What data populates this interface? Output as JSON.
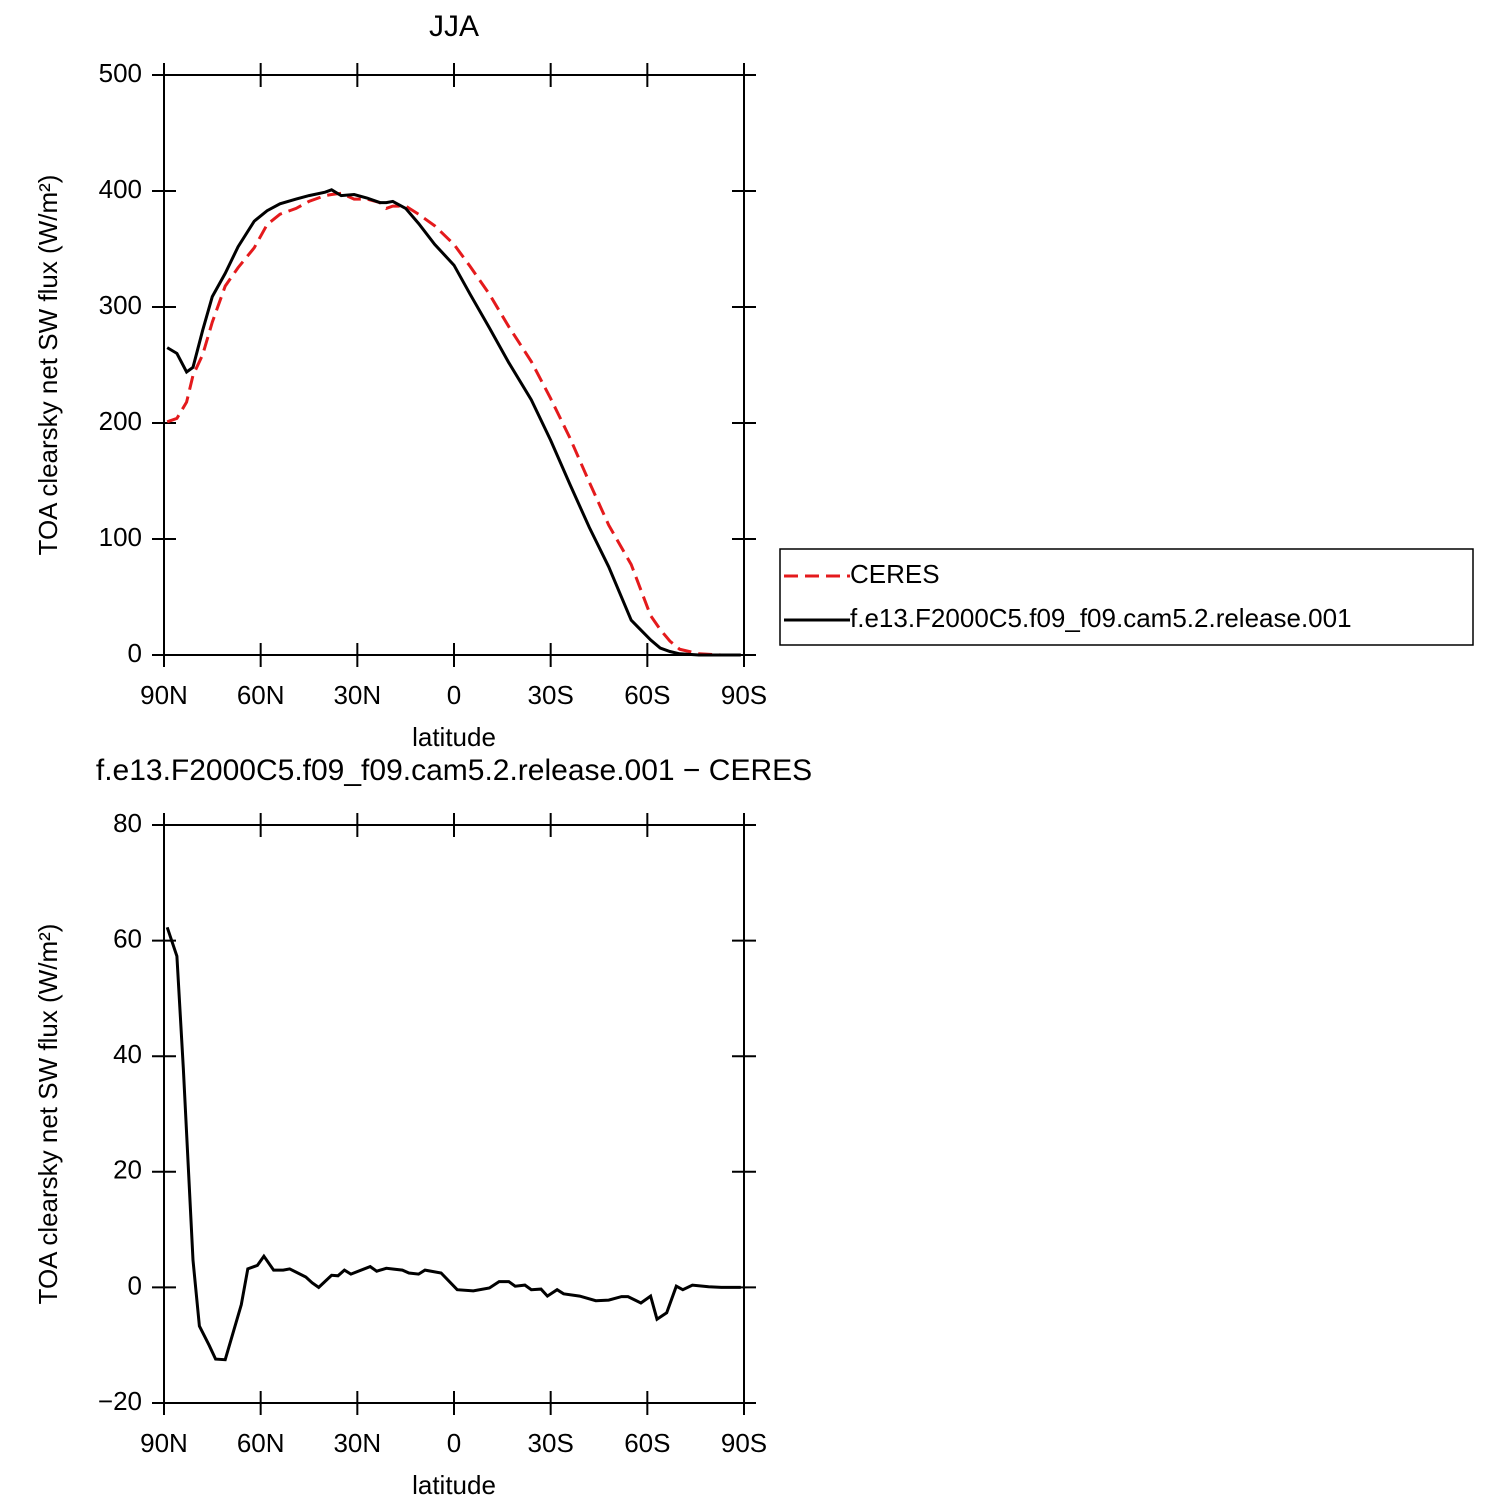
{
  "chart_data": [
    {
      "type": "line",
      "title": "JJA",
      "xlabel": "latitude",
      "ylabel": "TOA clearsky net SW flux (W/m²)",
      "x": [
        89,
        86,
        83,
        81,
        78,
        75,
        71,
        67,
        62,
        58,
        54,
        49,
        45,
        40,
        38,
        35,
        31,
        27,
        23,
        21,
        19,
        15,
        11,
        6,
        0,
        -5,
        -11,
        -17,
        -24,
        -30,
        -36,
        -42,
        -48,
        -55,
        -61,
        -64,
        -67,
        -70,
        -76,
        -83,
        -89
      ],
      "series": [
        {
          "name": "CERES",
          "color": "#e41a1c",
          "linestyle": "dashed",
          "values": [
            201,
            204,
            218,
            241,
            259,
            287,
            318,
            334,
            351,
            371,
            380,
            385,
            391,
            396,
            397,
            398,
            393,
            393,
            390,
            385,
            387,
            387,
            380,
            370,
            354,
            335,
            311,
            283,
            253,
            221,
            187,
            149,
            112,
            78,
            34,
            22,
            12,
            5,
            1,
            0,
            0
          ]
        },
        {
          "name": "f.e13.F2000C5.f09_f09.cam5.2.release.001",
          "color": "#000000",
          "linestyle": "solid",
          "values": [
            265,
            260,
            244,
            248,
            280,
            309,
            329,
            352,
            374,
            383,
            389,
            393,
            396,
            399,
            401,
            396,
            397,
            394,
            390,
            390,
            391,
            385,
            372,
            354,
            336,
            311,
            282,
            252,
            220,
            185,
            147,
            110,
            76,
            30,
            13,
            6,
            3,
            1,
            0,
            0,
            0
          ]
        }
      ],
      "xlim": [
        90,
        -90
      ],
      "ylim": [
        0,
        500
      ],
      "xticks": [
        {
          "value": 90,
          "label": "90N"
        },
        {
          "value": 60,
          "label": "60N"
        },
        {
          "value": 30,
          "label": "30N"
        },
        0,
        {
          "value": -30,
          "label": "30S"
        },
        {
          "value": -60,
          "label": "60S"
        },
        {
          "value": -90,
          "label": "90S"
        }
      ],
      "yticks": [
        0,
        100,
        200,
        300,
        400,
        500
      ],
      "legend": "right"
    },
    {
      "type": "line",
      "title": "f.e13.F2000C5.f09_f09.cam5.2.release.001  −  CERES",
      "xlabel": "latitude",
      "ylabel": "TOA clearsky net SW flux (W/m²)",
      "x": [
        89,
        86,
        84,
        81,
        79,
        76,
        74,
        71,
        66,
        64,
        61,
        59,
        56,
        53,
        51,
        46,
        44,
        42,
        38,
        36,
        34,
        32,
        26,
        24,
        21,
        16,
        14,
        11,
        9,
        4,
        -1,
        -6,
        -11,
        -14,
        -17,
        -19,
        -22,
        -24,
        -27,
        -29,
        -32,
        -34,
        -39,
        -44,
        -48,
        -52,
        -54,
        -58,
        -61,
        -63,
        -66,
        -69,
        -71,
        -74,
        -79,
        -83,
        -89
      ],
      "series": [
        {
          "color": "#000000",
          "linestyle": "solid",
          "values": [
            62.3,
            57.3,
            38,
            4.7,
            -6.7,
            -10,
            -12.4,
            -12.5,
            -3,
            3.2,
            3.8,
            5.4,
            3,
            3,
            3.2,
            1.8,
            0.8,
            0,
            2.1,
            2,
            3,
            2.3,
            3.6,
            2.8,
            3.3,
            3,
            2.5,
            2.3,
            3,
            2.5,
            -0.4,
            -0.6,
            -0.1,
            1,
            1,
            0.2,
            0.4,
            -0.4,
            -0.3,
            -1.5,
            -0.4,
            -1.1,
            -1.5,
            -2.3,
            -2.2,
            -1.6,
            -1.6,
            -2.7,
            -1.5,
            -5.5,
            -4.4,
            0.2,
            -0.4,
            0.4,
            0.1,
            0,
            0
          ]
        }
      ],
      "xlim": [
        90,
        -90
      ],
      "ylim": [
        -20,
        80
      ],
      "xticks": [
        {
          "value": 90,
          "label": "90N"
        },
        {
          "value": 60,
          "label": "60N"
        },
        {
          "value": 30,
          "label": "30N"
        },
        0,
        {
          "value": -30,
          "label": "30S"
        },
        {
          "value": -60,
          "label": "60S"
        },
        {
          "value": -90,
          "label": "90S"
        }
      ],
      "yticks": [
        {
          "value": -20,
          "label": "−20"
        },
        0,
        20,
        40,
        60,
        80
      ]
    }
  ]
}
